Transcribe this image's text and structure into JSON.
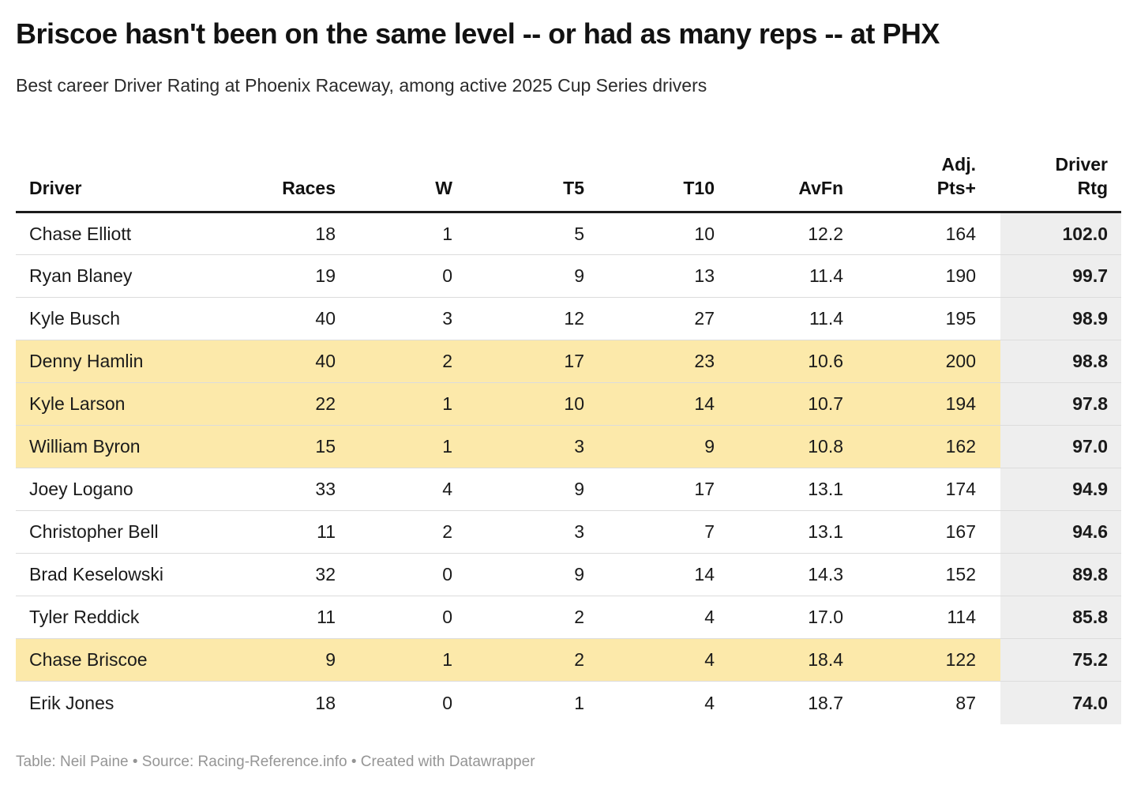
{
  "header": {
    "title": "Briscoe hasn't been on the same level -- or had as many reps -- at PHX",
    "subtitle": "Best career Driver Rating at Phoenix Raceway, among active 2025 Cup Series drivers"
  },
  "colors": {
    "highlight_row": "#fce9aa",
    "rating_column_bg": "#eeeeee",
    "header_rule": "#1c1c1c"
  },
  "chart_data": {
    "type": "table",
    "title": "Briscoe hasn't been on the same level -- or had as many reps -- at PHX",
    "columns": [
      {
        "key": "driver",
        "label": "Driver"
      },
      {
        "key": "races",
        "label": "Races"
      },
      {
        "key": "w",
        "label": "W"
      },
      {
        "key": "t5",
        "label": "T5"
      },
      {
        "key": "t10",
        "label": "T10"
      },
      {
        "key": "avfn",
        "label": "AvFn"
      },
      {
        "key": "adj_pts",
        "label": "Adj.\nPts+"
      },
      {
        "key": "driver_rtg",
        "label": "Driver\nRtg"
      }
    ],
    "rows": [
      {
        "driver": "Chase Elliott",
        "races": "18",
        "w": "1",
        "t5": "5",
        "t10": "10",
        "avfn": "12.2",
        "adj_pts": "164",
        "driver_rtg": "102.0",
        "highlight": false
      },
      {
        "driver": "Ryan Blaney",
        "races": "19",
        "w": "0",
        "t5": "9",
        "t10": "13",
        "avfn": "11.4",
        "adj_pts": "190",
        "driver_rtg": "99.7",
        "highlight": false
      },
      {
        "driver": "Kyle Busch",
        "races": "40",
        "w": "3",
        "t5": "12",
        "t10": "27",
        "avfn": "11.4",
        "adj_pts": "195",
        "driver_rtg": "98.9",
        "highlight": false
      },
      {
        "driver": "Denny Hamlin",
        "races": "40",
        "w": "2",
        "t5": "17",
        "t10": "23",
        "avfn": "10.6",
        "adj_pts": "200",
        "driver_rtg": "98.8",
        "highlight": true
      },
      {
        "driver": "Kyle Larson",
        "races": "22",
        "w": "1",
        "t5": "10",
        "t10": "14",
        "avfn": "10.7",
        "adj_pts": "194",
        "driver_rtg": "97.8",
        "highlight": true
      },
      {
        "driver": "William Byron",
        "races": "15",
        "w": "1",
        "t5": "3",
        "t10": "9",
        "avfn": "10.8",
        "adj_pts": "162",
        "driver_rtg": "97.0",
        "highlight": true
      },
      {
        "driver": "Joey Logano",
        "races": "33",
        "w": "4",
        "t5": "9",
        "t10": "17",
        "avfn": "13.1",
        "adj_pts": "174",
        "driver_rtg": "94.9",
        "highlight": false
      },
      {
        "driver": "Christopher Bell",
        "races": "11",
        "w": "2",
        "t5": "3",
        "t10": "7",
        "avfn": "13.1",
        "adj_pts": "167",
        "driver_rtg": "94.6",
        "highlight": false
      },
      {
        "driver": "Brad Keselowski",
        "races": "32",
        "w": "0",
        "t5": "9",
        "t10": "14",
        "avfn": "14.3",
        "adj_pts": "152",
        "driver_rtg": "89.8",
        "highlight": false
      },
      {
        "driver": "Tyler Reddick",
        "races": "11",
        "w": "0",
        "t5": "2",
        "t10": "4",
        "avfn": "17.0",
        "adj_pts": "114",
        "driver_rtg": "85.8",
        "highlight": false
      },
      {
        "driver": "Chase Briscoe",
        "races": "9",
        "w": "1",
        "t5": "2",
        "t10": "4",
        "avfn": "18.4",
        "adj_pts": "122",
        "driver_rtg": "75.2",
        "highlight": true
      },
      {
        "driver": "Erik Jones",
        "races": "18",
        "w": "0",
        "t5": "1",
        "t10": "4",
        "avfn": "18.7",
        "adj_pts": "87",
        "driver_rtg": "74.0",
        "highlight": false
      }
    ]
  },
  "footer": {
    "text": "Table: Neil Paine • Source: Racing-Reference.info • Created with Datawrapper"
  }
}
